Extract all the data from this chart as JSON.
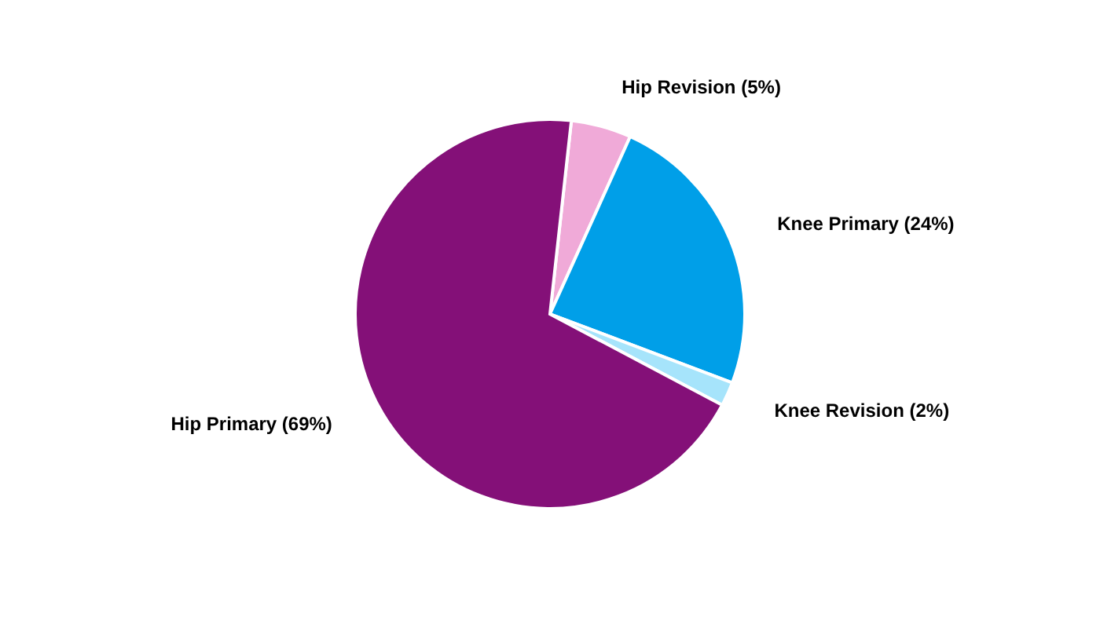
{
  "chart_data": {
    "type": "pie",
    "categories": [
      "Hip Revision (5%)",
      "Knee Primary (24%)",
      "Knee Revision (2%)",
      "Hip Primary (69%)"
    ],
    "values": [
      5,
      24,
      2,
      69
    ],
    "colors": [
      "#f0aad8",
      "#009fe8",
      "#a6e4fb",
      "#841078"
    ]
  }
}
